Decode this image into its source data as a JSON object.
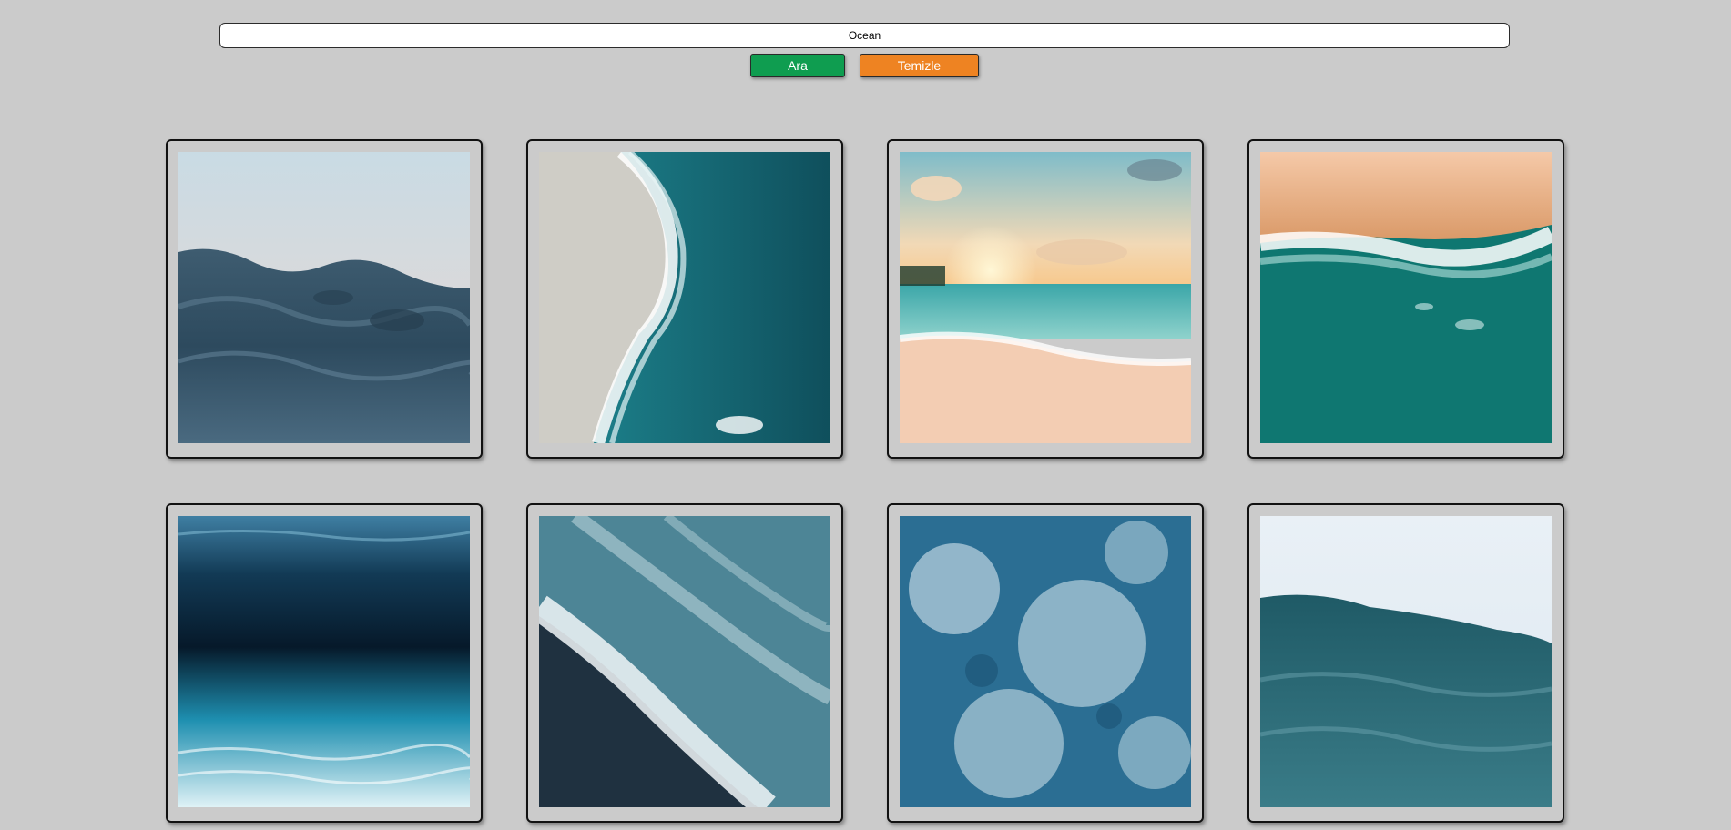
{
  "search": {
    "value": "Ocean",
    "placeholder": ""
  },
  "buttons": {
    "search_label": "Ara",
    "clear_label": "Temizle"
  },
  "colors": {
    "background": "#cbcbcb",
    "search_button": "#0f9d50",
    "clear_button": "#ee8322"
  },
  "gallery": {
    "images": [
      {
        "subject": "dark-ocean-wave-at-dusk"
      },
      {
        "subject": "aerial-beach-shoreline"
      },
      {
        "subject": "sunset-beach"
      },
      {
        "subject": "aerial-waves-on-sand"
      },
      {
        "subject": "underwater-sandy-seabed"
      },
      {
        "subject": "aerial-white-surf"
      },
      {
        "subject": "turbulent-white-water"
      },
      {
        "subject": "teal-waves-under-pale-sky"
      }
    ]
  }
}
